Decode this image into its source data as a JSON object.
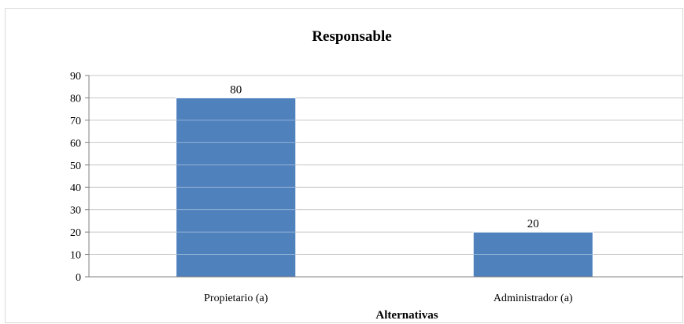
{
  "chart_data": {
    "type": "bar",
    "title": "Responsable",
    "xlabel": "Alternativas",
    "ylabel": "",
    "categories": [
      "Propietario  (a)",
      "Administrador (a)"
    ],
    "values": [
      80,
      20
    ],
    "data_labels": [
      "80",
      "20"
    ],
    "ylim": [
      0,
      90
    ],
    "yticks": [
      0,
      10,
      20,
      30,
      40,
      50,
      60,
      70,
      80,
      90
    ],
    "grid": true,
    "legend": "none",
    "colors": {
      "bar": "#4f81bd",
      "bar_stroke": "#ffffff",
      "grid": "#c8c8c8",
      "axis": "#808080"
    }
  }
}
